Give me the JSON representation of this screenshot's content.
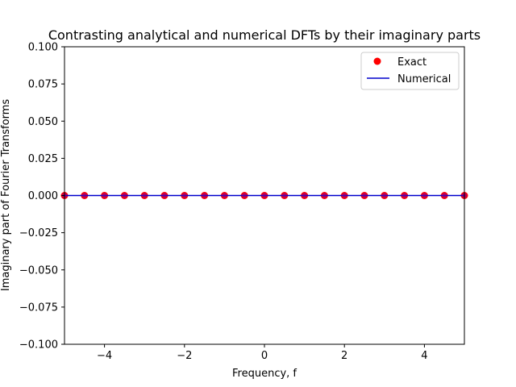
{
  "chart_data": {
    "type": "line",
    "title": "Contrasting analytical and numerical DFTs by their imaginary parts",
    "xlabel": "Frequency, f",
    "ylabel": "Imaginary part of Fourier Transforms",
    "xlim": [
      -5,
      5
    ],
    "ylim": [
      -0.1,
      0.1
    ],
    "x_ticks": [
      -4,
      -2,
      0,
      2,
      4
    ],
    "x_tick_labels": [
      "−4",
      "−2",
      "0",
      "2",
      "4"
    ],
    "y_ticks": [
      -0.1,
      -0.075,
      -0.05,
      -0.025,
      0,
      0.025,
      0.05,
      0.075,
      0.1
    ],
    "y_tick_labels": [
      "−0.100",
      "−0.075",
      "−0.050",
      "−0.025",
      "0.000",
      "0.025",
      "0.050",
      "0.075",
      "0.100"
    ],
    "grid": false,
    "legend_position": "top-right",
    "series": [
      {
        "name": "Exact",
        "kind": "scatter",
        "color": "#ff0000",
        "edge_color": "#7f00a0",
        "x": [
          -5,
          -4.5,
          -4,
          -3.5,
          -3,
          -2.5,
          -2,
          -1.5,
          -1,
          -0.5,
          0,
          0.5,
          1,
          1.5,
          2,
          2.5,
          3,
          3.5,
          4,
          4.5,
          5
        ],
        "y": [
          0,
          0,
          0,
          0,
          0,
          0,
          0,
          0,
          0,
          0,
          0,
          0,
          0,
          0,
          0,
          0,
          0,
          0,
          0,
          0,
          0
        ]
      },
      {
        "name": "Numerical",
        "kind": "line",
        "color": "#0000cc",
        "x": [
          -5,
          -4.5,
          -4,
          -3.5,
          -3,
          -2.5,
          -2,
          -1.5,
          -1,
          -0.5,
          0,
          0.5,
          1,
          1.5,
          2,
          2.5,
          3,
          3.5,
          4,
          4.5,
          5
        ],
        "y": [
          0,
          0,
          0,
          0,
          0,
          0,
          0,
          0,
          0,
          0,
          0,
          0,
          0,
          0,
          0,
          0,
          0,
          0,
          0,
          0,
          0
        ]
      }
    ]
  }
}
